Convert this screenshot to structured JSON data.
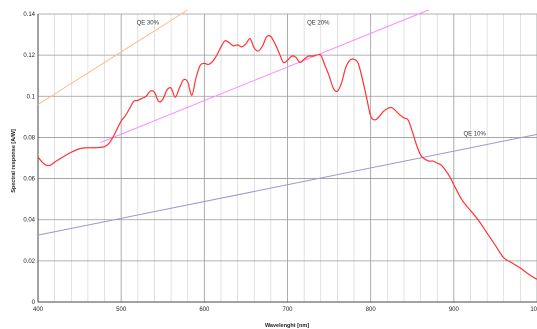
{
  "chart_data": {
    "type": "line",
    "title": "",
    "xlabel": "Wavelenght [nm]",
    "ylabel": "Spectral response [A/W]",
    "xlim": [
      400,
      1000
    ],
    "ylim": [
      0,
      0.14
    ],
    "grid": true,
    "x_major_ticks": [
      400,
      500,
      600,
      700,
      800,
      900,
      1000
    ],
    "x_tick_labels": [
      "400",
      "500",
      "600",
      "700",
      "800",
      "900",
      "1000"
    ],
    "x_minor_step": 20,
    "y_ticks": [
      0,
      0.02,
      0.04,
      0.06,
      0.08,
      0.1,
      0.12,
      0.14
    ],
    "y_tick_labels": [
      "0",
      "0.02",
      "0.04",
      "0.06",
      "0.08",
      "0.1",
      "0.12",
      "0.14"
    ],
    "series": [
      {
        "color": "#ff3333",
        "x": [
          400,
          405,
          410,
          415,
          420,
          430,
          440,
          450,
          460,
          470,
          480,
          485,
          490,
          495,
          500,
          505,
          510,
          515,
          520,
          525,
          530,
          535,
          540,
          545,
          550,
          555,
          560,
          565,
          570,
          575,
          580,
          585,
          590,
          595,
          600,
          605,
          610,
          615,
          620,
          625,
          630,
          635,
          640,
          645,
          650,
          655,
          660,
          665,
          670,
          675,
          680,
          685,
          690,
          695,
          700,
          705,
          710,
          715,
          720,
          725,
          730,
          735,
          740,
          745,
          750,
          755,
          760,
          765,
          770,
          775,
          780,
          785,
          790,
          795,
          800,
          805,
          810,
          815,
          820,
          825,
          830,
          835,
          840,
          845,
          850,
          855,
          860,
          865,
          870,
          875,
          880,
          885,
          890,
          895,
          900,
          910,
          920,
          930,
          940,
          950,
          960,
          970,
          980,
          990,
          1000
        ],
        "y": [
          0.0705,
          0.068,
          0.0665,
          0.0665,
          0.068,
          0.0705,
          0.0728,
          0.0745,
          0.075,
          0.075,
          0.0755,
          0.077,
          0.08,
          0.084,
          0.088,
          0.0905,
          0.094,
          0.0975,
          0.098,
          0.099,
          0.1,
          0.1025,
          0.102,
          0.0975,
          0.0985,
          0.103,
          0.104,
          0.0995,
          0.104,
          0.108,
          0.107,
          0.1005,
          0.109,
          0.115,
          0.116,
          0.1155,
          0.117,
          0.12,
          0.124,
          0.127,
          0.126,
          0.1245,
          0.125,
          0.124,
          0.1255,
          0.128,
          0.1235,
          0.122,
          0.1245,
          0.129,
          0.129,
          0.1255,
          0.121,
          0.1165,
          0.1175,
          0.1195,
          0.119,
          0.1165,
          0.118,
          0.1195,
          0.1195,
          0.12,
          0.12,
          0.115,
          0.11,
          0.104,
          0.1025,
          0.1065,
          0.114,
          0.1175,
          0.118,
          0.116,
          0.1085,
          0.0995,
          0.0905,
          0.0885,
          0.09,
          0.0925,
          0.094,
          0.0945,
          0.093,
          0.091,
          0.0895,
          0.0885,
          0.083,
          0.0765,
          0.0715,
          0.0695,
          0.0685,
          0.0685,
          0.0675,
          0.0665,
          0.064,
          0.061,
          0.057,
          0.0495,
          0.0445,
          0.0395,
          0.0335,
          0.0275,
          0.0215,
          0.019,
          0.0165,
          0.0135,
          0.011
        ]
      },
      {
        "color": "#ffbb88",
        "x": [
          400,
          580
        ],
        "y": [
          0.096,
          0.142
        ]
      },
      {
        "color": "#ff88ff",
        "x": [
          475,
          870
        ],
        "y": [
          0.0775,
          0.142
        ]
      },
      {
        "color": "#9999cc",
        "x": [
          400,
          1000
        ],
        "y": [
          0.0325,
          0.0815
        ]
      }
    ],
    "annotations": [
      {
        "text": "QE 30%",
        "x": 532,
        "y": 0.135
      },
      {
        "text": "QE 20%",
        "x": 737,
        "y": 0.135
      },
      {
        "text": "QE 10%",
        "x": 925,
        "y": 0.081
      }
    ]
  }
}
